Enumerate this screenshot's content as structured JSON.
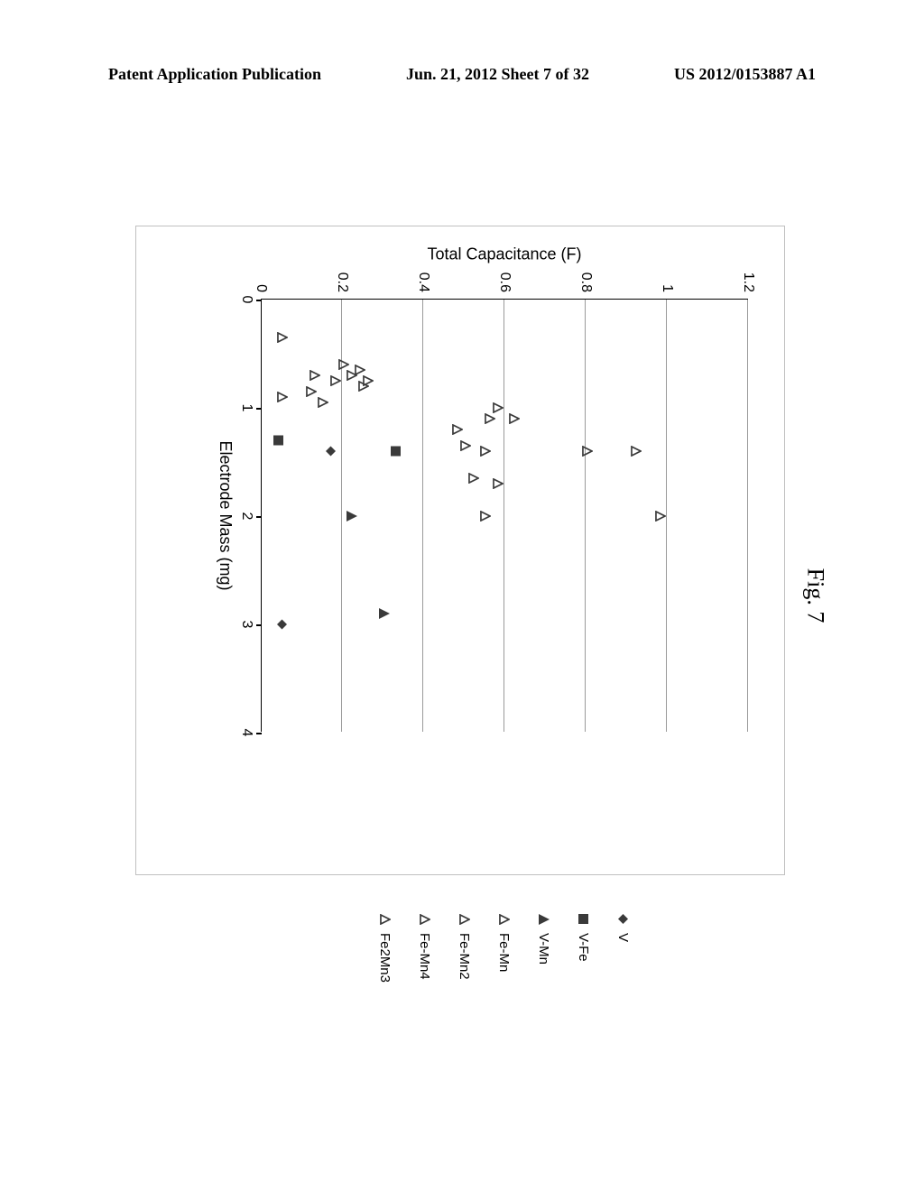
{
  "header": {
    "left": "Patent Application Publication",
    "center": "Jun. 21, 2012  Sheet 7 of 32",
    "right": "US 2012/0153887 A1"
  },
  "figure_label": "Fig. 7",
  "chart": {
    "type": "scatter",
    "xlabel": "Electrode Mass (mg)",
    "ylabel": "Total Capacitance (F)",
    "xlim": [
      0,
      4
    ],
    "ylim": [
      0,
      1.2
    ],
    "xtick_step": 1,
    "ytick_step": 0.2,
    "xticks": [
      0,
      1,
      2,
      3,
      4
    ],
    "yticks": [
      "0",
      "0.2",
      "0.4",
      "0.6",
      "0.8",
      "1",
      "1.2"
    ],
    "background_color": "#ffffff",
    "grid_color": "#9a9a9a",
    "axis_color": "#000000",
    "label_fontsize": 18,
    "tick_fontsize": 16,
    "series": [
      {
        "name": "V",
        "marker": "diamond-filled",
        "color": "#3a3a3a",
        "size": 11
      },
      {
        "name": "V-Fe",
        "marker": "square-filled",
        "color": "#3a3a3a",
        "size": 11
      },
      {
        "name": "V-Mn",
        "marker": "triangle-filled",
        "color": "#3a3a3a",
        "size": 12
      },
      {
        "name": "Fe-Mn",
        "marker": "triangle-open",
        "color": "#3a3a3a",
        "size": 12
      },
      {
        "name": "Fe-Mn2",
        "marker": "triangle-open",
        "color": "#3a3a3a",
        "size": 12
      },
      {
        "name": "Fe-Mn4",
        "marker": "triangle-open",
        "color": "#3a3a3a",
        "size": 12
      },
      {
        "name": "Fe2Mn3",
        "marker": "triangle-open",
        "color": "#3a3a3a",
        "size": 12
      }
    ],
    "points": [
      {
        "series": 0,
        "x": 1.4,
        "y": 0.17
      },
      {
        "series": 0,
        "x": 3.0,
        "y": 0.05
      },
      {
        "series": 1,
        "x": 1.3,
        "y": 0.04
      },
      {
        "series": 1,
        "x": 1.4,
        "y": 0.33
      },
      {
        "series": 2,
        "x": 2.0,
        "y": 0.22
      },
      {
        "series": 2,
        "x": 2.9,
        "y": 0.3
      },
      {
        "series": 3,
        "x": 0.35,
        "y": 0.05
      },
      {
        "series": 3,
        "x": 0.6,
        "y": 0.2
      },
      {
        "series": 3,
        "x": 0.65,
        "y": 0.24
      },
      {
        "series": 3,
        "x": 0.7,
        "y": 0.13
      },
      {
        "series": 3,
        "x": 0.7,
        "y": 0.22
      },
      {
        "series": 3,
        "x": 0.75,
        "y": 0.26
      },
      {
        "series": 3,
        "x": 0.75,
        "y": 0.18
      },
      {
        "series": 3,
        "x": 0.8,
        "y": 0.25
      },
      {
        "series": 3,
        "x": 0.85,
        "y": 0.12
      },
      {
        "series": 3,
        "x": 0.9,
        "y": 0.05
      },
      {
        "series": 3,
        "x": 0.95,
        "y": 0.15
      },
      {
        "series": 4,
        "x": 1.0,
        "y": 0.58
      },
      {
        "series": 4,
        "x": 1.1,
        "y": 0.56
      },
      {
        "series": 4,
        "x": 1.1,
        "y": 0.62
      },
      {
        "series": 4,
        "x": 1.2,
        "y": 0.48
      },
      {
        "series": 4,
        "x": 1.35,
        "y": 0.5
      },
      {
        "series": 4,
        "x": 1.4,
        "y": 0.55
      },
      {
        "series": 4,
        "x": 1.4,
        "y": 0.8
      },
      {
        "series": 4,
        "x": 1.65,
        "y": 0.52
      },
      {
        "series": 4,
        "x": 1.7,
        "y": 0.58
      },
      {
        "series": 5,
        "x": 1.4,
        "y": 0.92
      },
      {
        "series": 5,
        "x": 2.0,
        "y": 0.98
      },
      {
        "series": 6,
        "x": 2.0,
        "y": 0.55
      }
    ]
  }
}
